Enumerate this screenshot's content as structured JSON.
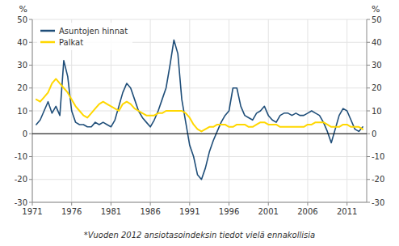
{
  "chart_data": {
    "type": "line",
    "ylabel": "%",
    "y2label": "%",
    "footnote": "*Vuoden 2012 ansiotasoindeksin tiedot vielä ennakollisia",
    "x": [
      1971.5,
      1972.0,
      1972.5,
      1973.0,
      1973.5,
      1974.0,
      1974.5,
      1975.0,
      1975.5,
      1976.0,
      1976.5,
      1977.0,
      1977.5,
      1978.0,
      1978.5,
      1979.0,
      1979.5,
      1980.0,
      1980.5,
      1981.0,
      1981.5,
      1982.0,
      1982.5,
      1983.0,
      1983.5,
      1984.0,
      1984.5,
      1985.0,
      1985.5,
      1986.0,
      1986.5,
      1987.0,
      1987.5,
      1988.0,
      1988.5,
      1989.0,
      1989.5,
      1990.0,
      1990.5,
      1991.0,
      1991.5,
      1992.0,
      1992.5,
      1993.0,
      1993.5,
      1994.0,
      1994.5,
      1995.0,
      1995.5,
      1996.0,
      1996.5,
      1997.0,
      1997.5,
      1998.0,
      1998.5,
      1999.0,
      1999.5,
      2000.0,
      2000.5,
      2001.0,
      2001.5,
      2002.0,
      2002.5,
      2003.0,
      2003.5,
      2004.0,
      2004.5,
      2005.0,
      2005.5,
      2006.0,
      2006.5,
      2007.0,
      2007.5,
      2008.0,
      2008.5,
      2009.0,
      2009.5,
      2010.0,
      2010.5,
      2011.0,
      2011.5,
      2012.0,
      2012.5,
      2013.0
    ],
    "series": [
      {
        "name": "Asuntojen hinnat",
        "color": "#1f4e79",
        "values": [
          4,
          6,
          10,
          14,
          9,
          12,
          8,
          32,
          25,
          10,
          5,
          4,
          4,
          3,
          3,
          5,
          4,
          5,
          4,
          3,
          6,
          12,
          18,
          22,
          20,
          15,
          10,
          7,
          5,
          3,
          6,
          10,
          15,
          20,
          30,
          41,
          35,
          15,
          5,
          -5,
          -10,
          -18,
          -20,
          -15,
          -8,
          -3,
          1,
          5,
          8,
          10,
          20,
          20,
          12,
          8,
          7,
          6,
          9,
          10,
          12,
          8,
          6,
          5,
          8,
          9,
          9,
          8,
          9,
          8,
          8,
          9,
          10,
          9,
          8,
          5,
          1,
          -4,
          2,
          8,
          11,
          10,
          6,
          2,
          1,
          3
        ]
      },
      {
        "name": "Palkat",
        "color": "#ffd700",
        "values": [
          15,
          14,
          16,
          18,
          22,
          24,
          22,
          20,
          18,
          15,
          12,
          10,
          8,
          7,
          9,
          11,
          13,
          14,
          13,
          12,
          11,
          10,
          13,
          14,
          13,
          11,
          10,
          9,
          8,
          8,
          8,
          9,
          9,
          10,
          10,
          10,
          10,
          10,
          9,
          7,
          4,
          2,
          1,
          2,
          3,
          3,
          4,
          4,
          4,
          3,
          3,
          4,
          4,
          4,
          3,
          3,
          4,
          5,
          5,
          4,
          4,
          4,
          3,
          3,
          3,
          3,
          3,
          3,
          3,
          4,
          4,
          5,
          5,
          5,
          4,
          3,
          3,
          3,
          4,
          4,
          3,
          3,
          3,
          2
        ]
      }
    ],
    "xlim": [
      1971,
      2013.5
    ],
    "xticks": [
      1971,
      1976,
      1981,
      1986,
      1991,
      1996,
      2001,
      2006,
      2011
    ],
    "ylim": [
      -30,
      50
    ],
    "yticks": [
      -30,
      -20,
      -10,
      0,
      10,
      20,
      30,
      40,
      50
    ],
    "y2lim": [
      -30,
      50
    ],
    "y2ticks": [
      -30,
      -20,
      -10,
      0,
      10,
      20,
      30,
      40,
      50
    ],
    "grid": true,
    "legend": "upper left"
  }
}
